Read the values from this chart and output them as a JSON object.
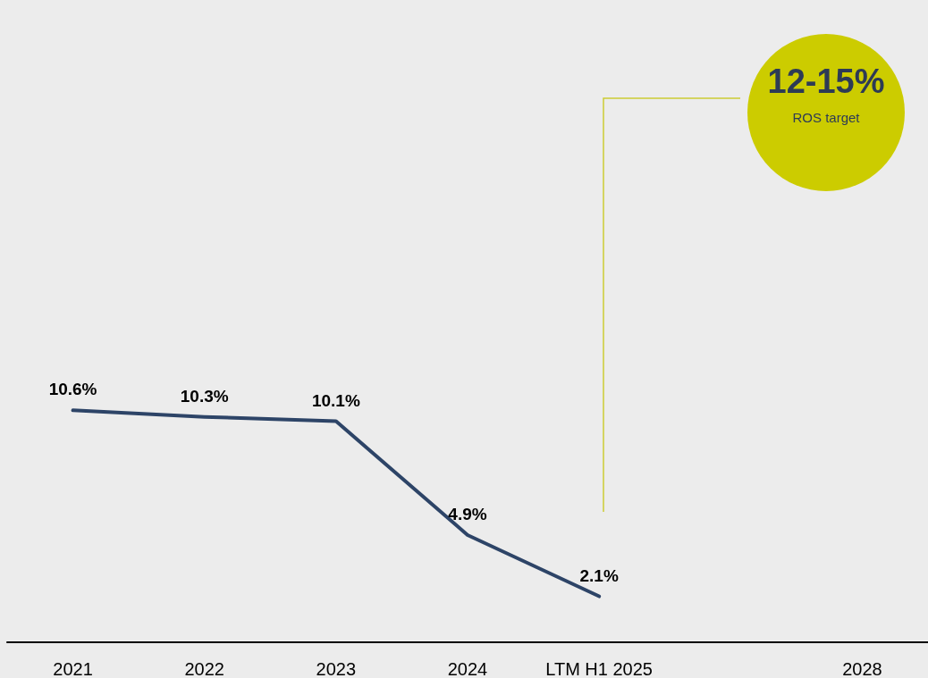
{
  "chart_data": {
    "type": "line",
    "categories": [
      "2021",
      "2022",
      "2023",
      "2024",
      "LTM H1 2025",
      null,
      "2028"
    ],
    "series": [
      {
        "color": "#2d4467",
        "values": [
          10.6,
          10.3,
          10.1,
          4.9,
          2.1,
          null,
          null
        ],
        "value_labels": [
          "10.6%",
          "10.3%",
          "10.1%",
          "4.9%",
          "2.1%",
          null,
          null
        ]
      }
    ],
    "marker": "none",
    "line_style": "solid",
    "grid": false,
    "annotations": [
      "12-15%",
      "ROS target"
    ]
  }
}
